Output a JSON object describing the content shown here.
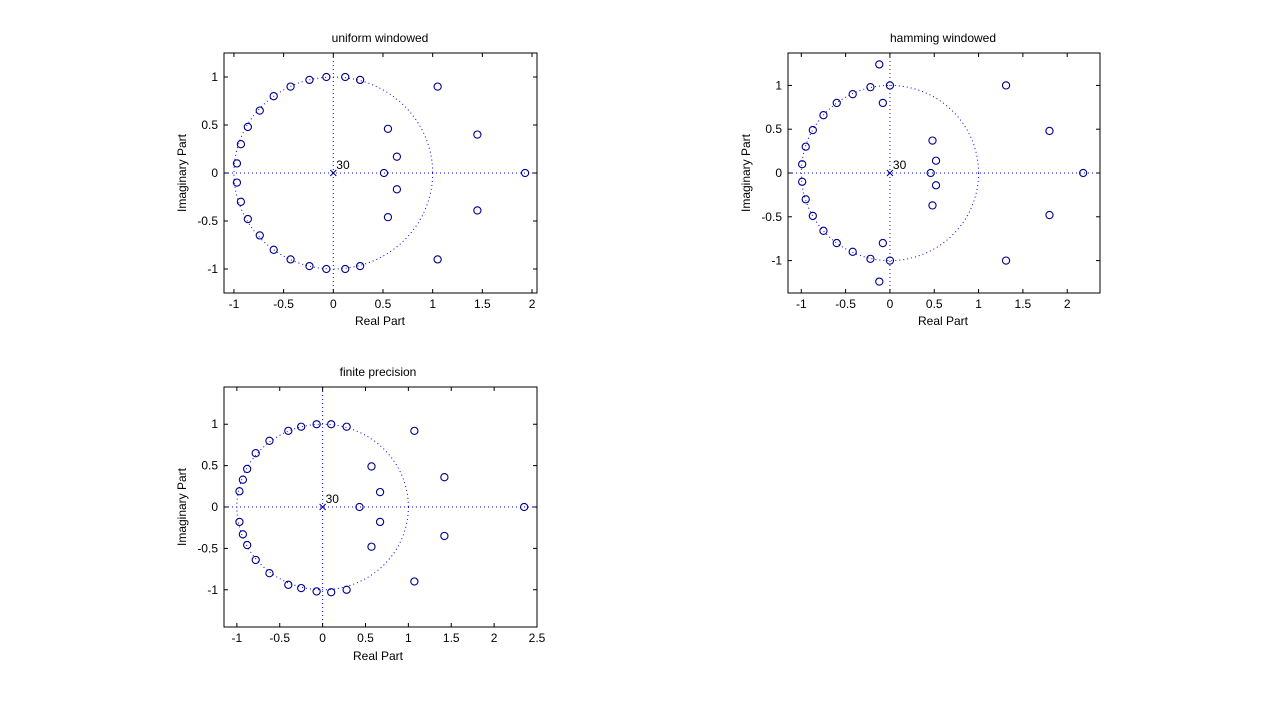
{
  "figure": {
    "colors": {
      "marker": "#00008b",
      "unit_circle": "#0000ff",
      "axes": "#000000"
    }
  },
  "chart_data": [
    {
      "type": "scatter",
      "title": "uniform windowed",
      "xlabel": "Real Part",
      "ylabel": "Imaginary Part",
      "xlim": [
        -1.1,
        2.05
      ],
      "ylim": [
        -1.25,
        1.25
      ],
      "xticks": [
        -1,
        -0.5,
        0,
        0.5,
        1,
        1.5,
        2
      ],
      "xtick_labels": [
        "-1",
        "-0.5",
        "0",
        "0.5",
        "1",
        "1.5",
        "2"
      ],
      "yticks": [
        -1,
        -0.5,
        0,
        0.5,
        1
      ],
      "ytick_labels": [
        "-1",
        "-0.5",
        "0",
        "0.5",
        "1"
      ],
      "pole": {
        "x": 0,
        "y": 0,
        "multiplicity_label": "30"
      },
      "zeros": [
        {
          "x": -0.07,
          "y": 1.0
        },
        {
          "x": 0.12,
          "y": 1.0
        },
        {
          "x": 0.27,
          "y": 0.97
        },
        {
          "x": -0.24,
          "y": 0.97
        },
        {
          "x": -0.43,
          "y": 0.9
        },
        {
          "x": -0.6,
          "y": 0.8
        },
        {
          "x": -0.74,
          "y": 0.65
        },
        {
          "x": -0.86,
          "y": 0.48
        },
        {
          "x": -0.93,
          "y": 0.3
        },
        {
          "x": -0.97,
          "y": 0.1
        },
        {
          "x": -0.97,
          "y": -0.1
        },
        {
          "x": -0.93,
          "y": -0.3
        },
        {
          "x": -0.86,
          "y": -0.48
        },
        {
          "x": -0.74,
          "y": -0.65
        },
        {
          "x": -0.6,
          "y": -0.8
        },
        {
          "x": -0.43,
          "y": -0.9
        },
        {
          "x": -0.24,
          "y": -0.97
        },
        {
          "x": -0.07,
          "y": -1.0
        },
        {
          "x": 0.12,
          "y": -1.0
        },
        {
          "x": 0.27,
          "y": -0.97
        },
        {
          "x": 0.55,
          "y": 0.46
        },
        {
          "x": 0.64,
          "y": 0.17
        },
        {
          "x": 0.51,
          "y": 0.0
        },
        {
          "x": 0.64,
          "y": -0.17
        },
        {
          "x": 0.55,
          "y": -0.46
        },
        {
          "x": 1.05,
          "y": 0.9
        },
        {
          "x": 1.05,
          "y": -0.9
        },
        {
          "x": 1.45,
          "y": 0.4
        },
        {
          "x": 1.45,
          "y": -0.39
        },
        {
          "x": 1.93,
          "y": 0.0
        }
      ]
    },
    {
      "type": "scatter",
      "title": "hamming windowed",
      "xlabel": "Real Part",
      "ylabel": "Imaginary Part",
      "xlim": [
        -1.15,
        2.37
      ],
      "ylim": [
        -1.37,
        1.37
      ],
      "xticks": [
        -1,
        -0.5,
        0,
        0.5,
        1,
        1.5,
        2
      ],
      "xtick_labels": [
        "-1",
        "-0.5",
        "0",
        "0.5",
        "1",
        "1.5",
        "2"
      ],
      "yticks": [
        -1,
        -0.5,
        0,
        0.5,
        1
      ],
      "ytick_labels": [
        "-1",
        "-0.5",
        "0",
        "0.5",
        "1"
      ],
      "pole": {
        "x": 0,
        "y": 0,
        "multiplicity_label": "30"
      },
      "zeros": [
        {
          "x": 0.0,
          "y": 1.0
        },
        {
          "x": -0.08,
          "y": 0.8
        },
        {
          "x": -0.12,
          "y": 1.24
        },
        {
          "x": -0.22,
          "y": 0.98
        },
        {
          "x": -0.42,
          "y": 0.9
        },
        {
          "x": -0.6,
          "y": 0.8
        },
        {
          "x": -0.75,
          "y": 0.66
        },
        {
          "x": -0.87,
          "y": 0.49
        },
        {
          "x": -0.95,
          "y": 0.3
        },
        {
          "x": -0.99,
          "y": 0.1
        },
        {
          "x": -0.99,
          "y": -0.1
        },
        {
          "x": -0.95,
          "y": -0.3
        },
        {
          "x": -0.87,
          "y": -0.49
        },
        {
          "x": -0.75,
          "y": -0.66
        },
        {
          "x": -0.6,
          "y": -0.8
        },
        {
          "x": -0.42,
          "y": -0.9
        },
        {
          "x": -0.22,
          "y": -0.98
        },
        {
          "x": -0.12,
          "y": -1.24
        },
        {
          "x": -0.08,
          "y": -0.8
        },
        {
          "x": 0.0,
          "y": -1.0
        },
        {
          "x": 0.48,
          "y": 0.37
        },
        {
          "x": 0.52,
          "y": 0.14
        },
        {
          "x": 0.46,
          "y": 0.0
        },
        {
          "x": 0.52,
          "y": -0.14
        },
        {
          "x": 0.48,
          "y": -0.37
        },
        {
          "x": 1.31,
          "y": 1.0
        },
        {
          "x": 1.31,
          "y": -1.0
        },
        {
          "x": 1.8,
          "y": 0.48
        },
        {
          "x": 1.8,
          "y": -0.48
        },
        {
          "x": 2.18,
          "y": 0.0
        }
      ]
    },
    {
      "type": "scatter",
      "title": "finite precision",
      "xlabel": "Real Part",
      "ylabel": "Imaginary Part",
      "xlim": [
        -1.15,
        2.5
      ],
      "ylim": [
        -1.45,
        1.45
      ],
      "xticks": [
        -1,
        -0.5,
        0,
        0.5,
        1,
        1.5,
        2,
        2.5
      ],
      "xtick_labels": [
        "-1",
        "-0.5",
        "0",
        "0.5",
        "1",
        "1.5",
        "2",
        "2.5"
      ],
      "yticks": [
        -1,
        -0.5,
        0,
        0.5,
        1
      ],
      "ytick_labels": [
        "-1",
        "-0.5",
        "0",
        "0.5",
        "1"
      ],
      "pole": {
        "x": 0,
        "y": 0,
        "multiplicity_label": "30"
      },
      "zeros": [
        {
          "x": -0.07,
          "y": 1.0
        },
        {
          "x": 0.1,
          "y": 1.0
        },
        {
          "x": 0.28,
          "y": 0.97
        },
        {
          "x": -0.25,
          "y": 0.97
        },
        {
          "x": -0.4,
          "y": 0.92
        },
        {
          "x": -0.62,
          "y": 0.8
        },
        {
          "x": -0.78,
          "y": 0.65
        },
        {
          "x": -0.88,
          "y": 0.46
        },
        {
          "x": -0.93,
          "y": 0.33
        },
        {
          "x": -0.97,
          "y": 0.19
        },
        {
          "x": -0.97,
          "y": -0.18
        },
        {
          "x": -0.93,
          "y": -0.33
        },
        {
          "x": -0.88,
          "y": -0.46
        },
        {
          "x": -0.78,
          "y": -0.64
        },
        {
          "x": -0.62,
          "y": -0.8
        },
        {
          "x": -0.4,
          "y": -0.94
        },
        {
          "x": -0.25,
          "y": -0.98
        },
        {
          "x": -0.07,
          "y": -1.02
        },
        {
          "x": 0.1,
          "y": -1.03
        },
        {
          "x": 0.28,
          "y": -1.0
        },
        {
          "x": 0.57,
          "y": 0.49
        },
        {
          "x": 0.67,
          "y": 0.18
        },
        {
          "x": 0.43,
          "y": 0.0
        },
        {
          "x": 0.67,
          "y": -0.18
        },
        {
          "x": 0.57,
          "y": -0.48
        },
        {
          "x": 1.07,
          "y": 0.92
        },
        {
          "x": 1.07,
          "y": -0.9
        },
        {
          "x": 1.42,
          "y": 0.36
        },
        {
          "x": 1.42,
          "y": -0.35
        },
        {
          "x": 2.35,
          "y": 0.0
        }
      ]
    }
  ]
}
